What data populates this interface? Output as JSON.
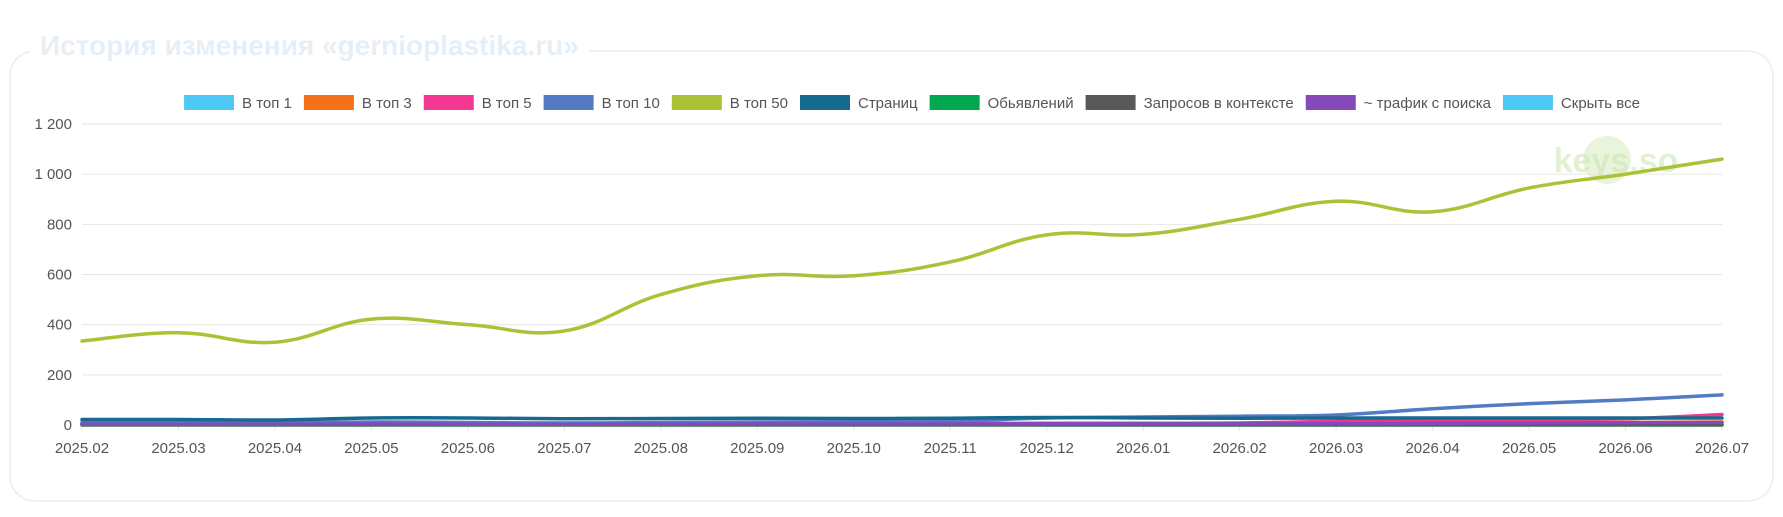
{
  "title": "История изменения «gernioplastika.ru»",
  "watermark": "keys.so",
  "chart_data": {
    "type": "line",
    "categories": [
      "2025.02",
      "2025.03",
      "2025.04",
      "2025.05",
      "2025.06",
      "2025.07",
      "2025.08",
      "2025.09",
      "2025.10",
      "2025.11",
      "2025.12",
      "2026.01",
      "2026.02",
      "2026.03",
      "2026.04",
      "2026.05",
      "2026.06",
      "2026.07"
    ],
    "ylim": [
      0,
      1200
    ],
    "yticks": [
      0,
      200,
      400,
      600,
      800,
      1000,
      1200
    ],
    "ytick_labels": [
      "0",
      "200",
      "400",
      "600",
      "800",
      "1 000",
      "1 200"
    ],
    "grid": true,
    "legend_position": "top",
    "series": [
      {
        "name": "В топ 1",
        "color": "#4dc9f6",
        "values": [
          2,
          2,
          2,
          2,
          2,
          2,
          2,
          2,
          2,
          2,
          3,
          3,
          3,
          3,
          4,
          4,
          5,
          6
        ]
      },
      {
        "name": "В топ 3",
        "color": "#f67019",
        "values": [
          4,
          4,
          4,
          4,
          4,
          4,
          4,
          4,
          4,
          4,
          5,
          5,
          5,
          6,
          8,
          9,
          10,
          12
        ]
      },
      {
        "name": "В топ 5",
        "color": "#f53794",
        "values": [
          6,
          6,
          6,
          7,
          6,
          5,
          6,
          6,
          6,
          6,
          7,
          7,
          8,
          15,
          20,
          22,
          25,
          42
        ]
      },
      {
        "name": "В топ 10",
        "color": "#537bc4",
        "values": [
          10,
          10,
          9,
          12,
          10,
          8,
          10,
          12,
          13,
          15,
          28,
          32,
          35,
          40,
          65,
          85,
          100,
          120
        ]
      },
      {
        "name": "В топ 50",
        "color": "#acc236",
        "values": [
          335,
          368,
          330,
          422,
          400,
          375,
          520,
          595,
          595,
          650,
          758,
          760,
          820,
          892,
          850,
          945,
          1000,
          1060
        ]
      },
      {
        "name": "Страниц",
        "color": "#166a8f",
        "values": [
          22,
          22,
          20,
          28,
          28,
          25,
          26,
          27,
          26,
          27,
          30,
          28,
          27,
          28,
          28,
          28,
          28,
          28
        ]
      },
      {
        "name": "Обьявлений",
        "color": "#00a950",
        "values": [
          0,
          0,
          0,
          0,
          0,
          0,
          0,
          0,
          0,
          0,
          0,
          0,
          0,
          0,
          0,
          0,
          0,
          0
        ]
      },
      {
        "name": "Запросов в контексте",
        "color": "#58595b",
        "values": [
          1,
          1,
          1,
          1,
          1,
          1,
          1,
          1,
          1,
          1,
          1,
          1,
          1,
          1,
          1,
          1,
          1,
          1
        ]
      },
      {
        "name": "~ трафик с поиска",
        "color": "#8549ba",
        "values": [
          3,
          3,
          3,
          4,
          3,
          3,
          3,
          4,
          4,
          4,
          5,
          5,
          5,
          6,
          7,
          8,
          9,
          10
        ]
      }
    ],
    "legend_extra": {
      "label": "Скрыть все",
      "color": "#4dc9f6"
    }
  }
}
